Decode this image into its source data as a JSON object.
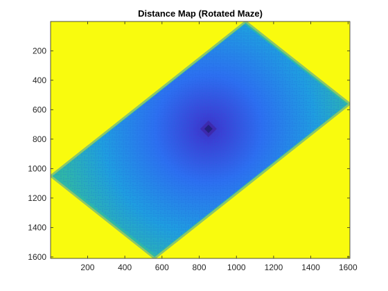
{
  "chart_data": {
    "type": "heatmap",
    "title": "Distance Map (Rotated Maze)",
    "xlabel": "",
    "ylabel": "",
    "xlim": [
      1,
      1610
    ],
    "ylim": [
      1,
      1610
    ],
    "y_reversed": true,
    "x_ticks": [
      200,
      400,
      600,
      800,
      1000,
      1200,
      1400,
      1600
    ],
    "y_ticks": [
      200,
      400,
      600,
      800,
      1000,
      1200,
      1400,
      1600
    ],
    "x_tick_labels": [
      "200",
      "400",
      "600",
      "800",
      "1000",
      "1200",
      "1400",
      "1600"
    ],
    "y_tick_labels": [
      "200",
      "400",
      "600",
      "800",
      "1000",
      "1200",
      "1400",
      "1600"
    ],
    "grid": false,
    "colormap": "parula",
    "background_value_color": "#f9fb0e",
    "maze_corners": [
      [
        1050,
        1
      ],
      [
        1610,
        560
      ],
      [
        560,
        1610
      ],
      [
        1,
        1050
      ]
    ],
    "center_point": [
      850,
      730
    ],
    "colors": {
      "outside": "#f9fb0e",
      "edge": "#2fb7a7",
      "mid": "#1f9ee0",
      "inner": "#2d6ff1",
      "core": "#3b3fd4",
      "min": "#3e26a8"
    }
  }
}
